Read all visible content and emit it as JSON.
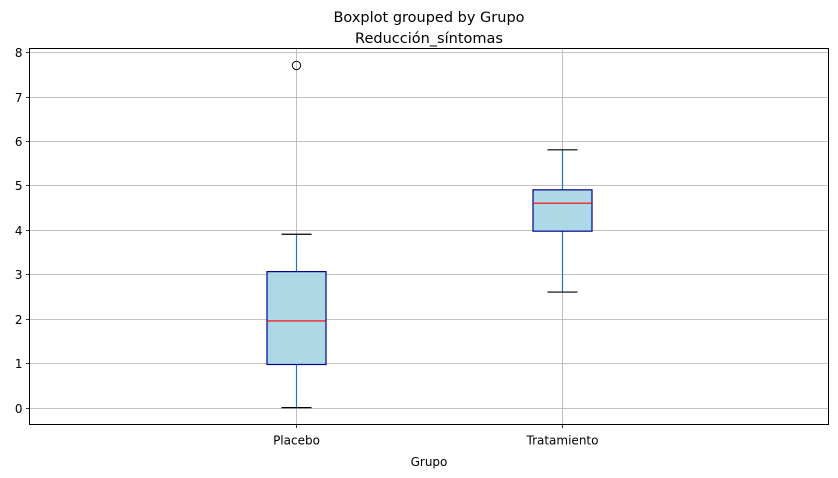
{
  "chart_data": {
    "type": "boxplot",
    "suptitle": "Boxplot grouped by Grupo",
    "title": "Reducción_síntomas",
    "xlabel": "Grupo",
    "ylabel": "",
    "ylim": [
      -0.38,
      8.08
    ],
    "yticks": [
      0,
      1,
      2,
      3,
      4,
      5,
      6,
      7,
      8
    ],
    "grid": true,
    "categories": [
      "Placebo",
      "Tratamiento"
    ],
    "boxes": [
      {
        "category": "Placebo",
        "whisker_low": 0.0,
        "q1": 0.97,
        "median": 1.95,
        "q3": 3.06,
        "whisker_high": 3.9,
        "outliers": [
          7.7
        ]
      },
      {
        "category": "Tratamiento",
        "whisker_low": 2.6,
        "q1": 3.97,
        "median": 4.6,
        "q3": 4.9,
        "whisker_high": 5.8,
        "outliers": []
      }
    ],
    "colors": {
      "box_fill": "#add8e6",
      "box_edge": "#00008b",
      "median": "#ff0000",
      "whisker": "#1f77b4",
      "cap": "#000000",
      "grid": "#b0b0b0"
    }
  }
}
